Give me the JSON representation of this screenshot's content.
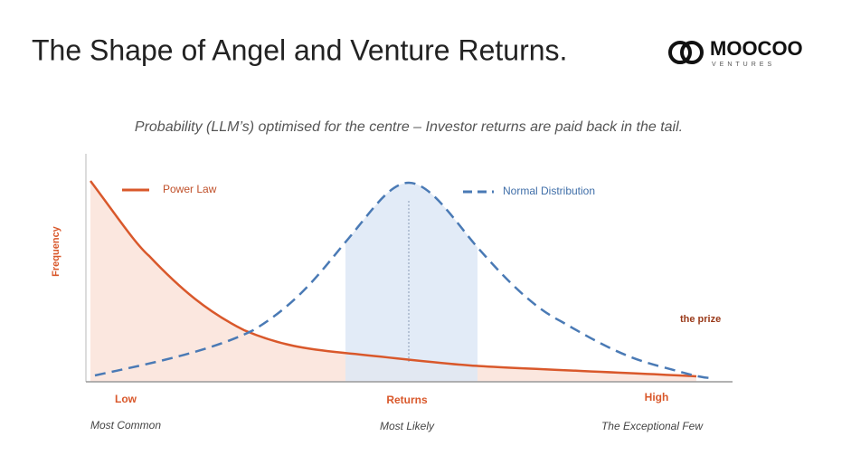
{
  "header": {
    "title": "The Shape of Angel and Venture Returns.",
    "logo": {
      "name": "MOOCOO",
      "tagline": "VENTURES"
    }
  },
  "subtitle": "Probability (LLM’s) optimised for the centre – Investor returns are paid back in the tail.",
  "diagram": {
    "y_label": "Frequency",
    "legend": [
      "Power Law",
      "Normal Distribution"
    ],
    "annotation": "the prize",
    "x_labels": [
      "Low",
      "Returns",
      "High"
    ],
    "x_sublabels": [
      "Most Common",
      "Most Likely",
      "The Exceptional Few"
    ]
  }
}
